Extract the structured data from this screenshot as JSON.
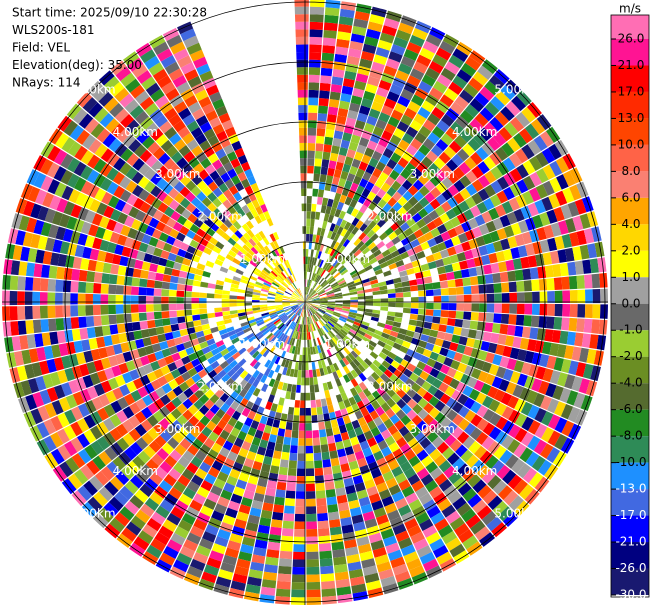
{
  "chart_data": {
    "type": "ppi",
    "info": [
      "Start time: 2025/09/10 22:30:28",
      "WLS200s-181",
      "Field: VEL",
      "Elevation(deg): 35.00",
      "NRays: 114"
    ],
    "ring_labels": [
      "1.00km",
      "2.00km",
      "3.00km",
      "4.00km",
      "5.00km"
    ],
    "colorbar": {
      "unit": "m/s",
      "ticks": [
        {
          "value": 26,
          "label": "26.0"
        },
        {
          "value": 21,
          "label": "21.0"
        },
        {
          "value": 17,
          "label": "17.0"
        },
        {
          "value": 13,
          "label": "13.0"
        },
        {
          "value": 10,
          "label": "10.0"
        },
        {
          "value": 8,
          "label": "8.0"
        },
        {
          "value": 6,
          "label": "6.0"
        },
        {
          "value": 4,
          "label": "4.0"
        },
        {
          "value": 2,
          "label": "2.0"
        },
        {
          "value": 1,
          "label": "1.0"
        },
        {
          "value": 0,
          "label": "0.0"
        },
        {
          "value": -1,
          "label": "-1.0"
        },
        {
          "value": -2,
          "label": "-2.0"
        },
        {
          "value": -4,
          "label": "-4.0"
        },
        {
          "value": -6,
          "label": "-6.0"
        },
        {
          "value": -8,
          "label": "-8.0"
        },
        {
          "value": -10,
          "label": "-10.0"
        },
        {
          "value": -13,
          "label": "-13.0"
        },
        {
          "value": -17,
          "label": "-17.0"
        },
        {
          "value": -21,
          "label": "-21.0"
        },
        {
          "value": -26,
          "label": "-26.0"
        },
        {
          "value": -30,
          "label": "-30.0"
        }
      ],
      "colors": [
        "#ff6eb4",
        "#ff1493",
        "#ff0000",
        "#ff2a00",
        "#ff4500",
        "#ff6347",
        "#fa8072",
        "#ffa500",
        "#ffd700",
        "#ffff00",
        "#a0a0a0",
        "#696969",
        "#9acd32",
        "#6b8e23",
        "#556b2f",
        "#228b22",
        "#2e8b57",
        "#1e90ff",
        "#4169e1",
        "#0000ff",
        "#000080",
        "#191970"
      ]
    }
  }
}
